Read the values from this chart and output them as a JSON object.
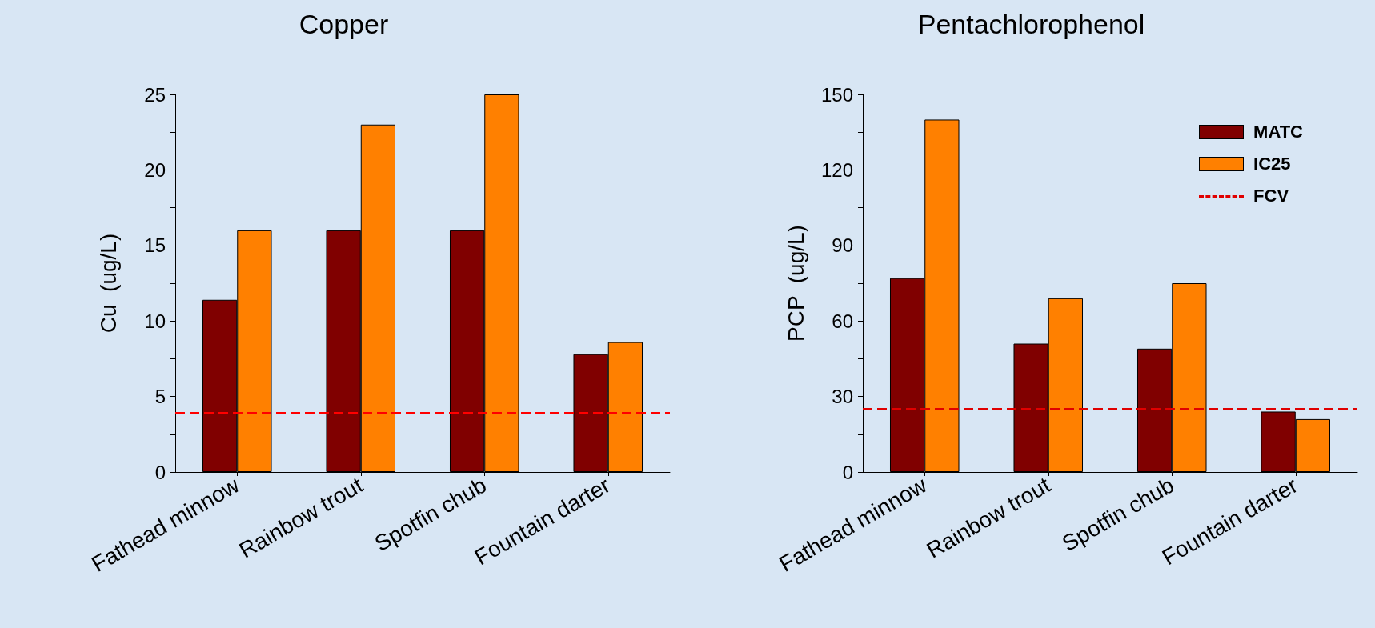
{
  "chart_data": [
    {
      "type": "bar",
      "title": "Copper",
      "ylabel": "Cu  (ug/L)",
      "categories": [
        "Fathead minnow",
        "Rainbow trout",
        "Spotfin chub",
        "Fountain darter"
      ],
      "series": [
        {
          "color": "#800000",
          "values": [
            11.4,
            16,
            16,
            7.8
          ]
        },
        {
          "color": "#ff8000",
          "values": [
            16,
            23,
            25,
            8.6
          ]
        }
      ],
      "ylim": [
        0,
        25
      ],
      "yticks": [
        0,
        {
          "value": 2.5,
          "label": null
        },
        5,
        {
          "value": 7.5,
          "label": null
        },
        10,
        {
          "value": 12.5,
          "label": null
        },
        15,
        {
          "value": 17.5,
          "label": null
        },
        20,
        {
          "value": 22.5,
          "label": null
        },
        25
      ],
      "ref_lines": [
        {
          "axis": "y",
          "value": 3.9,
          "color": "#ff0000",
          "line_style": "dashed"
        }
      ],
      "grid": false
    },
    {
      "type": "bar",
      "title": "Pentachlorophenol",
      "ylabel": "PCP  (ug/L)",
      "categories": [
        "Fathead minnow",
        "Rainbow trout",
        "Spotfin chub",
        "Fountain darter"
      ],
      "series": [
        {
          "name": "MATC",
          "color": "#800000",
          "values": [
            77,
            51,
            49,
            24
          ]
        },
        {
          "name": "IC25",
          "color": "#ff8000",
          "values": [
            140,
            69,
            75,
            21
          ]
        }
      ],
      "ylim": [
        0,
        150
      ],
      "yticks": [
        0,
        {
          "value": 15,
          "label": null
        },
        30,
        {
          "value": 45,
          "label": null
        },
        60,
        {
          "value": 75,
          "label": null
        },
        90,
        {
          "value": 105,
          "label": null
        },
        120,
        {
          "value": 135,
          "label": null
        },
        150
      ],
      "ref_lines": [
        {
          "axis": "y",
          "value": 25,
          "label": "FCV",
          "color": "#e00000",
          "line_style": "dashed"
        }
      ],
      "grid": false,
      "legend": "top right"
    }
  ]
}
